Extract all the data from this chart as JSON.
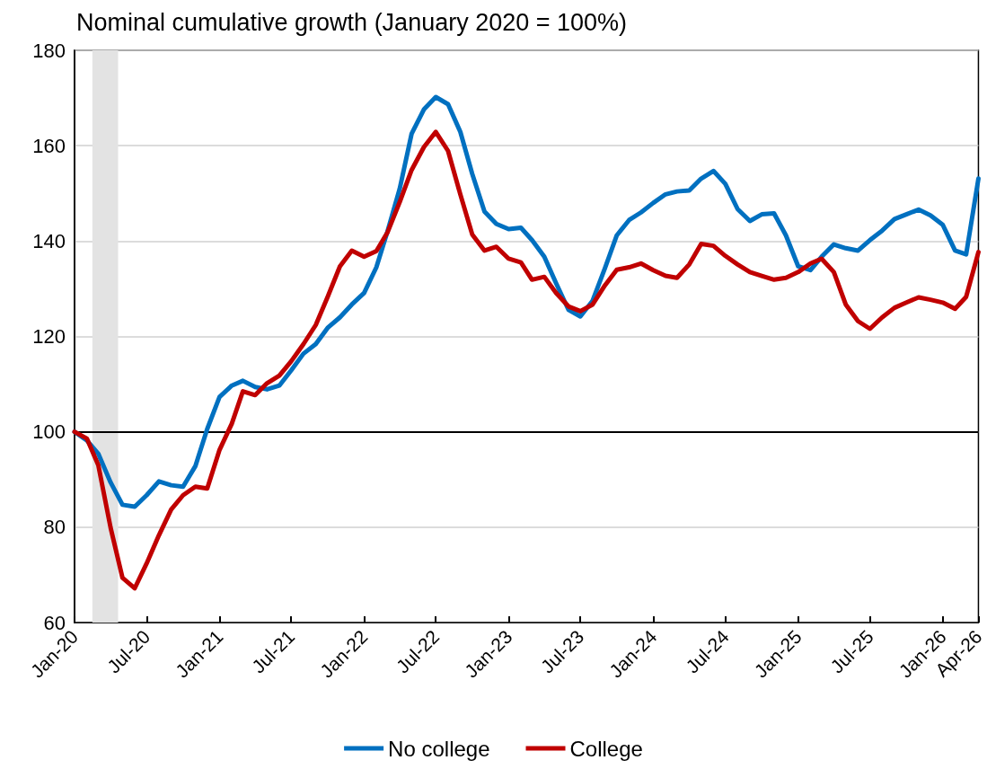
{
  "chart_data": {
    "type": "line",
    "title": "Nominal cumulative growth (January 2020 = 100%)",
    "x": [
      "2020-01",
      "2020-02",
      "2020-03",
      "2020-04",
      "2020-05",
      "2020-06",
      "2020-07",
      "2020-08",
      "2020-09",
      "2020-10",
      "2020-11",
      "2020-12",
      "2021-01",
      "2021-02",
      "2021-03",
      "2021-04",
      "2021-05",
      "2021-06",
      "2021-07",
      "2021-08",
      "2021-09",
      "2021-10",
      "2021-11",
      "2021-12",
      "2022-01",
      "2022-02",
      "2022-03",
      "2022-04",
      "2022-05",
      "2022-06",
      "2022-07",
      "2022-08",
      "2022-09",
      "2022-10",
      "2022-11",
      "2022-12",
      "2023-01",
      "2023-02",
      "2023-03",
      "2023-04",
      "2023-05",
      "2023-06",
      "2023-07",
      "2023-08",
      "2023-09",
      "2023-10",
      "2023-11",
      "2023-12",
      "2024-01",
      "2024-02",
      "2024-03",
      "2024-04",
      "2024-05",
      "2024-06",
      "2024-07",
      "2024-08",
      "2024-09",
      "2024-10",
      "2024-11",
      "2024-12",
      "2025-01",
      "2025-02",
      "2025-03",
      "2025-04",
      "2025-05",
      "2025-06",
      "2025-07",
      "2025-08",
      "2025-09",
      "2025-10",
      "2025-11",
      "2025-12",
      "2026-01",
      "2026-02",
      "2026-03",
      "2026-04"
    ],
    "series": [
      {
        "name": "No college",
        "color": "#0070c0",
        "values": [
          100,
          98.2,
          95.4,
          89.4,
          84.7,
          84.3,
          86.7,
          89.6,
          88.8,
          88.5,
          92.8,
          100.6,
          107.3,
          109.7,
          110.7,
          109.4,
          108.9,
          109.7,
          112.9,
          116.4,
          118.4,
          121.8,
          124,
          126.7,
          129.1,
          134.5,
          142,
          151,
          162.5,
          167.6,
          170.2,
          168.7,
          162.9,
          154.1,
          146.2,
          143.6,
          142.5,
          142.8,
          140.2,
          136.7,
          131.1,
          125.6,
          124.2,
          127.5,
          134.3,
          141.2,
          144.4,
          146,
          148,
          149.8,
          150.4,
          150.6,
          153.1,
          154.7,
          152,
          146.7,
          144.2,
          145.6,
          145.8,
          141.2,
          134.7,
          133.9,
          136.7,
          139.3,
          138.5,
          138,
          140.2,
          142.2,
          144.6,
          145.6,
          146.6,
          145.4,
          143.4,
          138,
          137.2,
          153.1
        ]
      },
      {
        "name": "College",
        "color": "#c00000",
        "values": [
          100,
          98.6,
          93,
          79.9,
          69.4,
          67.2,
          72.4,
          78.3,
          83.7,
          86.7,
          88.5,
          88.1,
          96.2,
          101.7,
          108.5,
          107.7,
          110.2,
          111.8,
          114.8,
          118.4,
          122.4,
          128.3,
          134.7,
          138,
          136.7,
          137.9,
          141.8,
          148.2,
          154.9,
          159.7,
          162.9,
          158.9,
          149.8,
          141.4,
          138,
          138.8,
          136.3,
          135.5,
          131.9,
          132.5,
          129.1,
          126.3,
          125.3,
          126.7,
          130.7,
          134,
          134.5,
          135.3,
          133.9,
          132.7,
          132.3,
          135.1,
          139.4,
          139,
          136.9,
          135.1,
          133.5,
          132.7,
          131.9,
          132.3,
          133.5,
          135.3,
          136.3,
          133.5,
          126.7,
          123.2,
          121.6,
          124,
          126,
          127.1,
          128.2,
          127.7,
          127.1,
          125.8,
          128.3,
          137.7
        ]
      }
    ],
    "xlim": [
      "2020-01",
      "2026-04"
    ],
    "xticks": [
      {
        "value": "2020-01",
        "label": "Jan-20"
      },
      {
        "value": "2020-07",
        "label": "Jul-20"
      },
      {
        "value": "2021-01",
        "label": "Jan-21"
      },
      {
        "value": "2021-07",
        "label": "Jul-21"
      },
      {
        "value": "2022-01",
        "label": "Jan-22"
      },
      {
        "value": "2022-07",
        "label": "Jul-22"
      },
      {
        "value": "2023-01",
        "label": "Jan-23"
      },
      {
        "value": "2023-07",
        "label": "Jul-23"
      },
      {
        "value": "2024-01",
        "label": "Jan-24"
      },
      {
        "value": "2024-07",
        "label": "Jul-24"
      },
      {
        "value": "2025-01",
        "label": "Jan-25"
      },
      {
        "value": "2025-07",
        "label": "Jul-25"
      },
      {
        "value": "2026-01",
        "label": "Jan-26"
      },
      {
        "value": "2026-04",
        "label": "Apr-26"
      }
    ],
    "ylim": [
      60,
      180
    ],
    "yticks": [
      60,
      80,
      100,
      120,
      140,
      160,
      180
    ],
    "ref_lines": [
      {
        "axis": "y",
        "value": 100,
        "color": "#000000"
      }
    ],
    "bands": [
      {
        "axis": "x",
        "from": "2020-02-15",
        "to": "2020-04-20",
        "color": "#e3e3e3"
      }
    ],
    "grid": "y",
    "legend": "bottom",
    "marker": "none",
    "line_style": "solid"
  }
}
